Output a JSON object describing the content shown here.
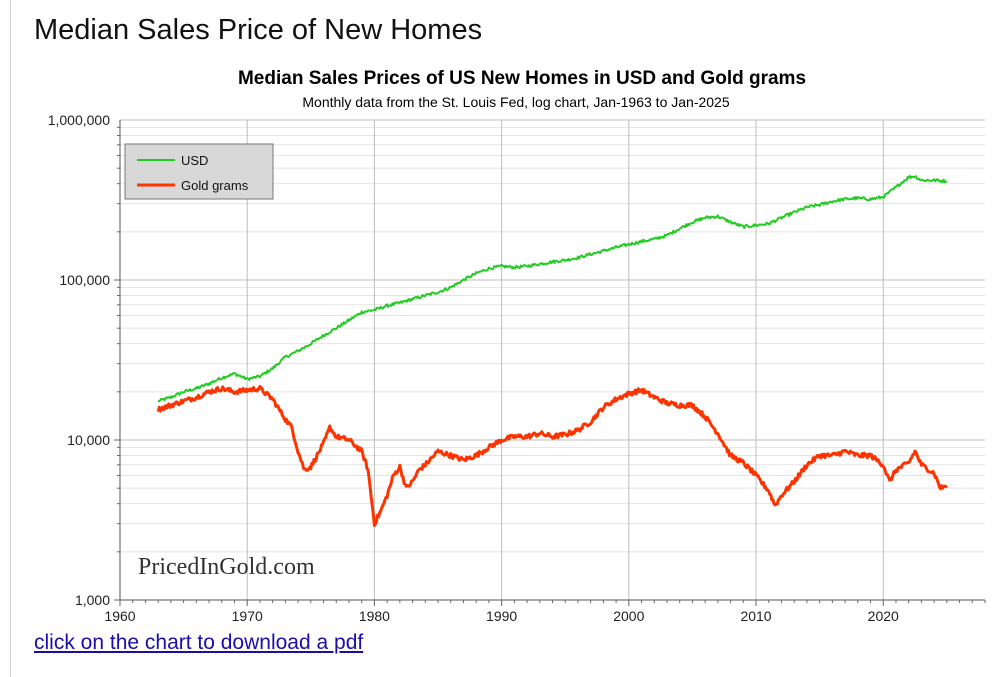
{
  "page": {
    "heading": "Median Sales Price of New Homes",
    "download_link": "click on the chart to download a pdf"
  },
  "chart_data": {
    "type": "line",
    "title": "Median Sales Prices of US New Homes in USD and Gold grams",
    "subtitle": "Monthly data from the St. Louis Fed, log chart, Jan-1963 to Jan-2025",
    "watermark": "PricedInGold.com",
    "xlabel": "",
    "ylabel": "",
    "yscale": "log",
    "xlim": [
      1960,
      2028
    ],
    "ylim": [
      1000,
      1000000
    ],
    "x_ticks": [
      1960,
      1970,
      1980,
      1990,
      2000,
      2010,
      2020
    ],
    "x_tick_labels": [
      "1960",
      "1970",
      "1980",
      "1990",
      "2000",
      "2010",
      "2020"
    ],
    "y_ticks": [
      1000,
      10000,
      100000,
      1000000
    ],
    "y_tick_labels": [
      "1,000",
      "10,000",
      "100,000",
      "1,000,000"
    ],
    "grid": true,
    "legend_position": "top-left",
    "series": [
      {
        "name": "USD",
        "color": "#22cc22",
        "x": [
          1963.0,
          1964.0,
          1965.0,
          1966.0,
          1967.0,
          1968.0,
          1969.0,
          1970.0,
          1971.0,
          1972.0,
          1973.0,
          1974.0,
          1975.0,
          1976.0,
          1977.0,
          1978.0,
          1979.0,
          1980.0,
          1981.0,
          1982.0,
          1983.0,
          1984.0,
          1985.0,
          1986.0,
          1987.0,
          1988.0,
          1989.0,
          1990.0,
          1991.0,
          1992.0,
          1993.0,
          1994.0,
          1995.0,
          1996.0,
          1997.0,
          1998.0,
          1999.0,
          2000.0,
          2001.0,
          2002.0,
          2003.0,
          2004.0,
          2005.0,
          2006.0,
          2007.0,
          2008.0,
          2009.0,
          2010.0,
          2011.0,
          2012.0,
          2013.0,
          2014.0,
          2015.0,
          2016.0,
          2017.0,
          2018.0,
          2019.0,
          2020.0,
          2021.0,
          2022.0,
          2022.5,
          2023.0,
          2024.0,
          2025.0
        ],
        "values": [
          17500,
          18500,
          20000,
          21000,
          22500,
          24500,
          26000,
          24000,
          25000,
          28000,
          33000,
          36000,
          40000,
          45000,
          50000,
          56000,
          63000,
          65000,
          69000,
          72000,
          76000,
          80000,
          84000,
          90000,
          100000,
          110000,
          118000,
          122000,
          120000,
          122000,
          126000,
          130000,
          133000,
          138000,
          145000,
          152000,
          160000,
          167000,
          174000,
          180000,
          190000,
          210000,
          230000,
          245000,
          250000,
          230000,
          215000,
          220000,
          225000,
          245000,
          265000,
          285000,
          295000,
          310000,
          320000,
          325000,
          320000,
          330000,
          380000,
          440000,
          445000,
          420000,
          420000,
          415000
        ]
      },
      {
        "name": "Gold grams",
        "color": "#ff3300",
        "x": [
          1963.0,
          1964.0,
          1965.0,
          1966.0,
          1967.0,
          1968.0,
          1969.0,
          1970.0,
          1971.0,
          1972.0,
          1973.0,
          1973.5,
          1974.0,
          1974.5,
          1975.0,
          1975.5,
          1976.0,
          1976.5,
          1977.0,
          1978.0,
          1979.0,
          1979.5,
          1980.0,
          1980.5,
          1981.0,
          1981.5,
          1982.0,
          1982.5,
          1983.0,
          1983.5,
          1984.0,
          1985.0,
          1986.0,
          1987.0,
          1988.0,
          1989.0,
          1990.0,
          1991.0,
          1992.0,
          1993.0,
          1994.0,
          1995.0,
          1996.0,
          1997.0,
          1998.0,
          1999.0,
          2000.0,
          2001.0,
          2002.0,
          2003.0,
          2004.0,
          2005.0,
          2006.0,
          2007.0,
          2008.0,
          2009.0,
          2010.0,
          2011.0,
          2011.5,
          2012.0,
          2013.0,
          2014.0,
          2015.0,
          2016.0,
          2017.0,
          2018.0,
          2019.0,
          2020.0,
          2020.5,
          2021.0,
          2022.0,
          2022.5,
          2023.0,
          2024.0,
          2024.5,
          2025.0
        ],
        "values": [
          15500,
          16500,
          17500,
          18500,
          20000,
          21000,
          20000,
          20500,
          21000,
          18000,
          13500,
          12000,
          8500,
          6500,
          6800,
          8000,
          9500,
          12000,
          10500,
          10000,
          8500,
          6500,
          3000,
          3600,
          4500,
          6000,
          6800,
          5000,
          5500,
          6500,
          7000,
          8500,
          8000,
          7500,
          8000,
          9000,
          10000,
          10500,
          10500,
          11000,
          10500,
          10800,
          11500,
          13000,
          16000,
          18000,
          19500,
          20500,
          18500,
          17000,
          16500,
          16500,
          14000,
          11000,
          8000,
          7200,
          6000,
          4800,
          3900,
          4500,
          5500,
          7000,
          8000,
          8000,
          8500,
          8000,
          8000,
          7000,
          5500,
          6500,
          7200,
          8500,
          7000,
          6200,
          5000,
          5200
        ]
      }
    ]
  }
}
